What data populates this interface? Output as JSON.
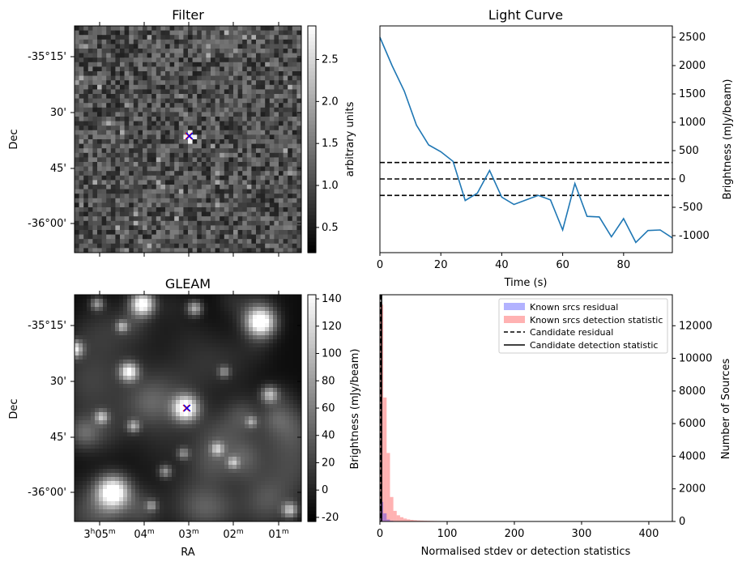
{
  "chart_data": [
    {
      "type": "heatmap",
      "title": "Filter",
      "ylabel": "Dec",
      "colorbar_label": "arbitrary units",
      "colormap": "gray",
      "colorbar_range": [
        0.2,
        2.9
      ],
      "colorbar_ticks": [
        "0.5",
        "1.0",
        "1.5",
        "2.0",
        "2.5"
      ],
      "dec_ticks": [
        "-35°15'",
        "30'",
        "45'",
        "-36°00'"
      ],
      "marker_colors": [
        "#0000ff",
        "#ff0000"
      ]
    },
    {
      "type": "line",
      "title": "Light Curve",
      "xlabel": "Time (s)",
      "ylabel": "Brightness (mJy/beam)",
      "xlim": [
        0,
        96
      ],
      "ylim": [
        -1300,
        2700
      ],
      "x_ticks": [
        "0",
        "20",
        "40",
        "60",
        "80"
      ],
      "y_ticks": [
        "-1000",
        "-500",
        "0",
        "500",
        "1000",
        "1500",
        "2000",
        "2500"
      ],
      "color": "#1f77b4",
      "x": [
        0,
        4,
        8,
        12,
        16,
        20,
        24,
        28,
        32,
        36,
        40,
        44,
        48,
        52,
        56,
        60,
        64,
        68,
        72,
        76,
        80,
        84,
        88,
        92,
        96
      ],
      "y": [
        2500,
        2000,
        1550,
        950,
        600,
        480,
        310,
        -380,
        -250,
        150,
        -320,
        -450,
        -370,
        -290,
        -370,
        -900,
        -80,
        -660,
        -670,
        -1020,
        -700,
        -1120,
        -910,
        -900,
        -1040
      ],
      "hlines": [
        290,
        0,
        -290
      ]
    },
    {
      "type": "heatmap",
      "title": "GLEAM",
      "xlabel": "RA",
      "ylabel": "Dec",
      "colorbar_label": "Brightness (mJy/beam)",
      "colormap": "gray",
      "colorbar_range": [
        -23,
        143
      ],
      "colorbar_ticks": [
        "-20",
        "0",
        "20",
        "40",
        "60",
        "80",
        "100",
        "120",
        "140"
      ],
      "dec_ticks": [
        "-35°15'",
        "30'",
        "45'",
        "-36°00'"
      ],
      "ra_ticks": [
        {
          "h": "3",
          "hs": "h",
          "m": "05",
          "ms": "m"
        },
        {
          "h": "",
          "hs": "",
          "m": "04",
          "ms": "m"
        },
        {
          "h": "",
          "hs": "",
          "m": "03",
          "ms": "m"
        },
        {
          "h": "",
          "hs": "",
          "m": "02",
          "ms": "m"
        },
        {
          "h": "",
          "hs": "",
          "m": "01",
          "ms": "m"
        }
      ],
      "marker_colors": [
        "#0000ff",
        "#ff0000"
      ]
    },
    {
      "type": "bar",
      "xlabel": "Normalised stdev or detection statistics",
      "ylabel": "Number of Sources",
      "xlim": [
        0,
        435
      ],
      "ylim": [
        0,
        13900
      ],
      "x_ticks": [
        "0",
        "100",
        "200",
        "300",
        "400"
      ],
      "y_ticks": [
        "0",
        "2000",
        "4000",
        "6000",
        "8000",
        "10000",
        "12000"
      ],
      "legend_position": "top-right",
      "bin_width": 5,
      "series": [
        {
          "name": "Known srcs residual",
          "color": "#0000ff",
          "values": [
            1200,
            500,
            120,
            40,
            10,
            5
          ]
        },
        {
          "name": "Known srcs detection statistic",
          "color": "#ff0000",
          "values": [
            13300,
            7600,
            4200,
            1500,
            650,
            380,
            260,
            180,
            130,
            100,
            80,
            65,
            55,
            48,
            42,
            36,
            32,
            28,
            25,
            22,
            20,
            18,
            16,
            15,
            14,
            13,
            12,
            11,
            10,
            10,
            9,
            9,
            8,
            8,
            7,
            7,
            6,
            6,
            6,
            5,
            5,
            5,
            4,
            4,
            4,
            4,
            3,
            3,
            3,
            3,
            3,
            3,
            2,
            2,
            2,
            2,
            2,
            2,
            2,
            2,
            1,
            1,
            1,
            1,
            1,
            1,
            1,
            1,
            1,
            1,
            1,
            1,
            1,
            1,
            1,
            1,
            1,
            1,
            1,
            1,
            1,
            1,
            1,
            1,
            1,
            1
          ]
        },
        {
          "name": "Candidate residual",
          "color": "#000000",
          "line": "dashed",
          "x": 1.5
        },
        {
          "name": "Candidate detection statistic",
          "color": "#000000",
          "line": "solid",
          "x": 2.5
        }
      ]
    }
  ]
}
